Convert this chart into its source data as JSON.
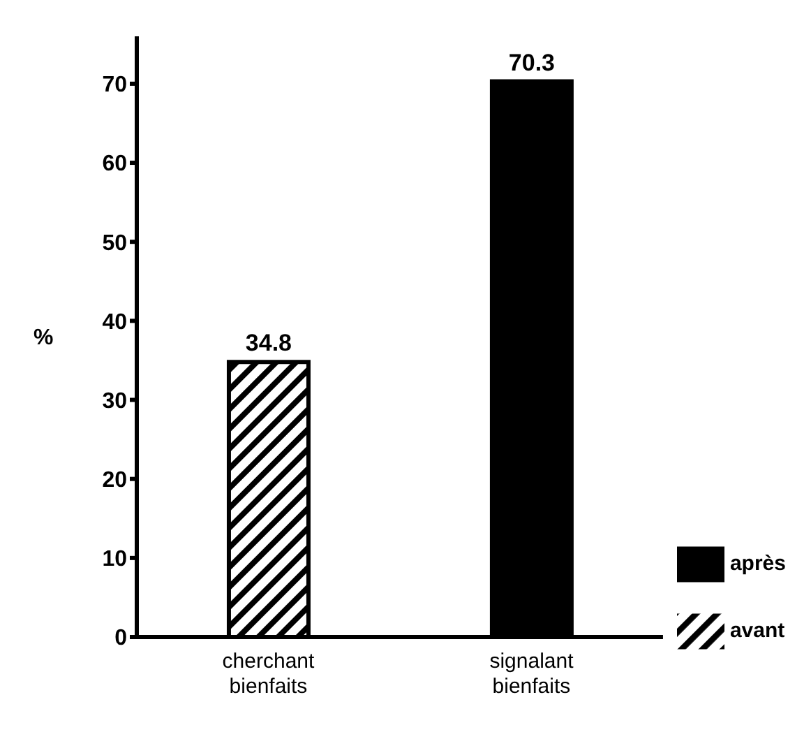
{
  "chart_data": {
    "type": "bar",
    "ylabel": "%",
    "categories": [
      "cherchant bienfaits",
      "signalant bienfaits"
    ],
    "series": [
      {
        "name": "avant",
        "color": "#000000",
        "values": [
          34.8,
          null
        ]
      },
      {
        "name": "après",
        "color": "#000000",
        "values": [
          null,
          70.3
        ]
      }
    ],
    "ylim": [
      0,
      76
    ],
    "yticks": [
      0,
      10,
      20,
      30,
      40,
      50,
      60,
      70
    ],
    "data_labels": true,
    "legend": "right",
    "grid": false
  }
}
